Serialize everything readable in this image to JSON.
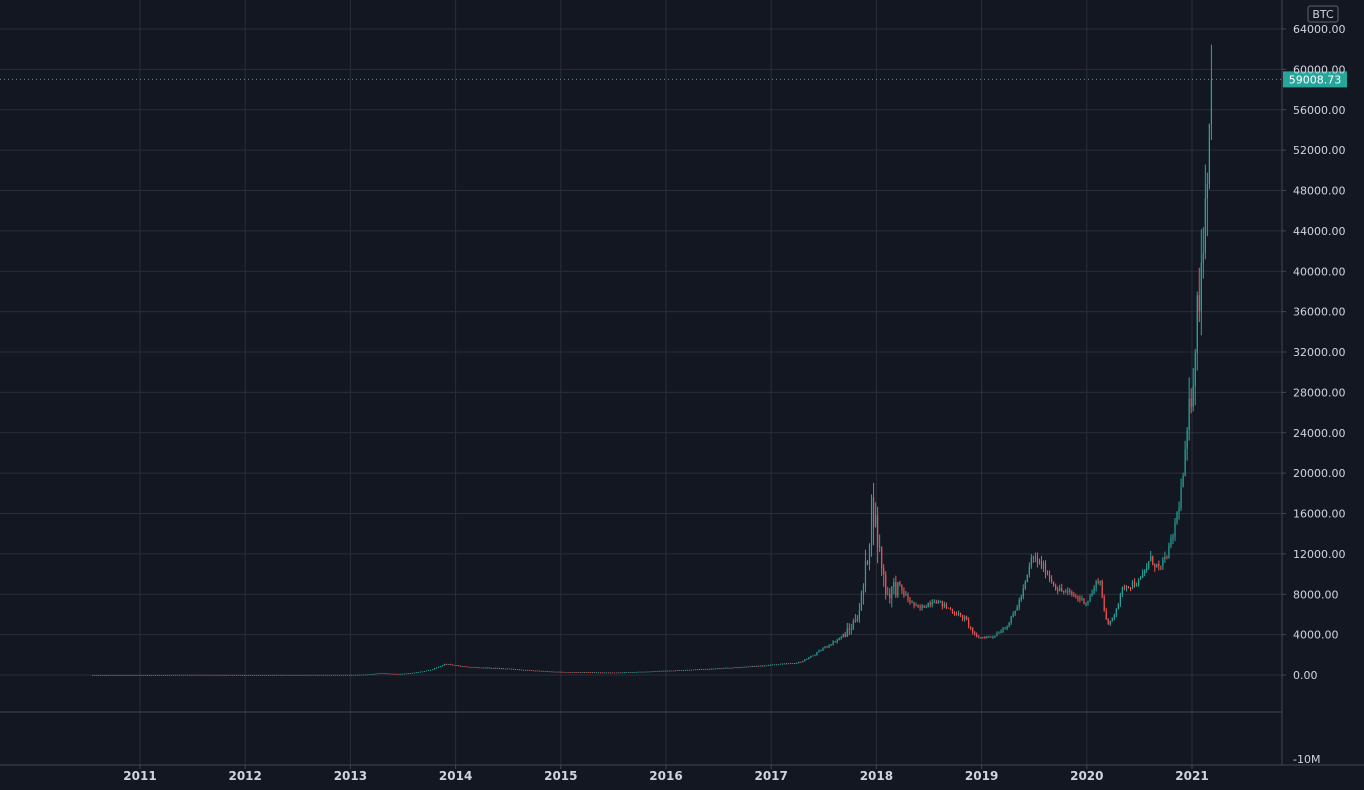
{
  "app": {
    "symbol_badge": "BTC"
  },
  "colors": {
    "background": "#131722",
    "grid": "#2a2e39",
    "axis_text": "#d1d4dc",
    "up": "#26a69a",
    "down": "#ef5350",
    "last_price_bg": "#26a69a",
    "separator": "#434651"
  },
  "chart_data": {
    "type": "candlestick",
    "ylim": [
      0,
      64000
    ],
    "y_ticks": [
      "64000.00",
      "60000.00",
      "56000.00",
      "52000.00",
      "48000.00",
      "44000.00",
      "40000.00",
      "36000.00",
      "32000.00",
      "28000.00",
      "24000.00",
      "20000.00",
      "16000.00",
      "12000.00",
      "8000.00",
      "4000.00",
      "0.00"
    ],
    "x_ticks": [
      "2011",
      "2012",
      "2013",
      "2014",
      "2015",
      "2016",
      "2017",
      "2018",
      "2019",
      "2020",
      "2021"
    ],
    "last_price": 59008.73,
    "last_price_label": "59008.73",
    "volume_pane": {
      "tick_label": "-10M"
    },
    "price_anchors": [
      [
        2010.5,
        0.06
      ],
      [
        2011.45,
        20
      ],
      [
        2012.0,
        5
      ],
      [
        2013.0,
        13
      ],
      [
        2013.28,
        200
      ],
      [
        2013.45,
        100
      ],
      [
        2013.9,
        1100
      ],
      [
        2014.1,
        800
      ],
      [
        2014.5,
        620
      ],
      [
        2015.0,
        300
      ],
      [
        2015.5,
        240
      ],
      [
        2016.0,
        420
      ],
      [
        2016.5,
        650
      ],
      [
        2017.0,
        1000
      ],
      [
        2017.25,
        1200
      ],
      [
        2017.5,
        2700
      ],
      [
        2017.75,
        4500
      ],
      [
        2017.85,
        7000
      ],
      [
        2017.96,
        17500
      ],
      [
        2018.05,
        11000
      ],
      [
        2018.1,
        8000
      ],
      [
        2018.2,
        9000
      ],
      [
        2018.3,
        7500
      ],
      [
        2018.4,
        6500
      ],
      [
        2018.55,
        7500
      ],
      [
        2018.7,
        6500
      ],
      [
        2018.85,
        5500
      ],
      [
        2018.95,
        3700
      ],
      [
        2019.1,
        3800
      ],
      [
        2019.25,
        5000
      ],
      [
        2019.4,
        8500
      ],
      [
        2019.48,
        11800
      ],
      [
        2019.6,
        10500
      ],
      [
        2019.72,
        8500
      ],
      [
        2019.85,
        8000
      ],
      [
        2020.0,
        7200
      ],
      [
        2020.12,
        9800
      ],
      [
        2020.2,
        4800
      ],
      [
        2020.35,
        8800
      ],
      [
        2020.5,
        9200
      ],
      [
        2020.6,
        11500
      ],
      [
        2020.7,
        10500
      ],
      [
        2020.8,
        13000
      ],
      [
        2020.9,
        18500
      ],
      [
        2021.0,
        29000
      ],
      [
        2021.05,
        36000
      ],
      [
        2021.12,
        46000
      ],
      [
        2021.17,
        57000
      ],
      [
        2021.2,
        59008.73
      ]
    ]
  }
}
